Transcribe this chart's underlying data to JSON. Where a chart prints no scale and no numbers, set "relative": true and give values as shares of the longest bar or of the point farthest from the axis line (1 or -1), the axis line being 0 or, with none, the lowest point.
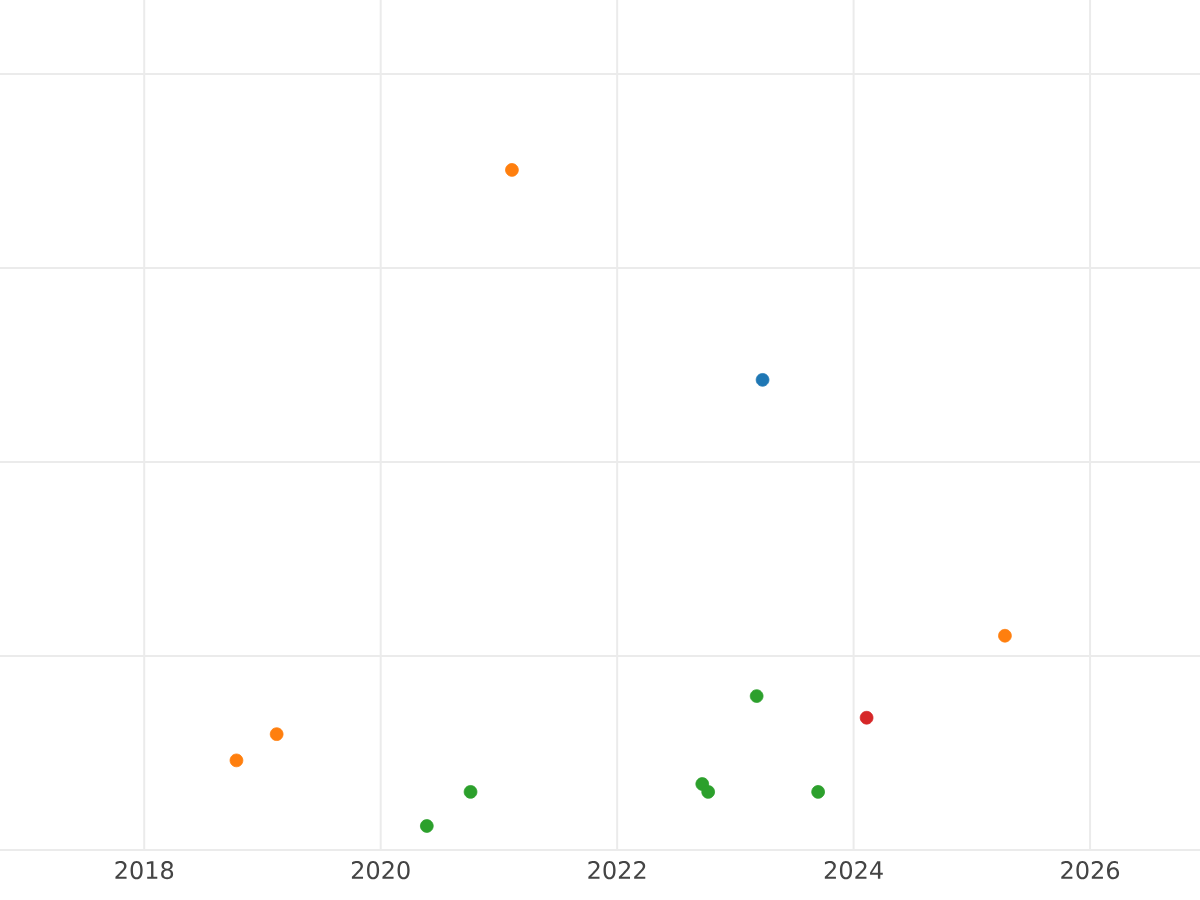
{
  "chart_data": {
    "type": "scatter",
    "relative": true,
    "grid": true,
    "xlim": [
      2016.78,
      2026.93
    ],
    "xticks": [
      2018,
      2020,
      2022,
      2024,
      2026
    ],
    "series": [
      {
        "color": "#1f77b4",
        "x": [
          2023.23
        ],
        "values": [
          0.68
        ]
      },
      {
        "color": "#ff7f0e",
        "x": [
          2021.11,
          2025.28,
          2019.12,
          2018.78
        ],
        "values": [
          1.0,
          0.29,
          0.14,
          0.1
        ]
      },
      {
        "color": "#2ca02c",
        "x": [
          2023.18,
          2020.76,
          2022.72,
          2022.77,
          2023.7,
          2020.39
        ],
        "values": [
          0.198,
          0.052,
          0.064,
          0.052,
          0.052,
          0.0
        ]
      },
      {
        "color": "#d62728",
        "x": [
          2024.11
        ],
        "values": [
          0.165
        ]
      }
    ]
  }
}
